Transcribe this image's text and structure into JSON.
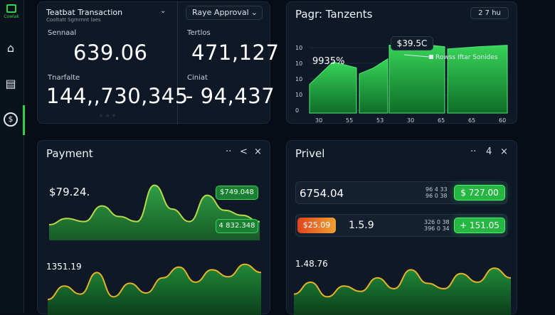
{
  "sidebar": {
    "logo_text": "Cowlak",
    "icons": [
      "home-icon",
      "folder-icon",
      "dollar-icon"
    ]
  },
  "panel1": {
    "title": "Teatbat Transaction",
    "subtitle": "Cooltatt Sgmrnnt laes",
    "dropdown": "Raye Approval",
    "stats": [
      {
        "label": "Sennaal",
        "value": "639.06"
      },
      {
        "label": "Tertlos",
        "value": "471,127"
      },
      {
        "label": "Tnarfalte",
        "value": "144,,730,345"
      },
      {
        "label": "Ciniat",
        "value": "- 94,437"
      }
    ],
    "pager": "◦ ◦ ◦"
  },
  "panel2": {
    "title": "Pagr: Tanzents",
    "badge": "2 7 hu",
    "price_label": "$39.5C",
    "percent_label": "9935%",
    "legend": "Rowss Iftar Sonides",
    "y_ticks": [
      "10",
      "10",
      "10",
      "10",
      "0"
    ],
    "x_ticks": [
      "30",
      "55",
      "53",
      "30",
      "65",
      "65",
      "60"
    ],
    "chart_data": {
      "type": "area",
      "series": [
        {
          "values": [
            38,
            68,
            60,
            52,
            60,
            72,
            90,
            92,
            88,
            85,
            88,
            90
          ]
        }
      ],
      "ylim": [
        0,
        100
      ]
    }
  },
  "panel3": {
    "title": "Payment",
    "controls": [
      "··",
      "<",
      "×"
    ],
    "value_top": "$79.24.",
    "chip_top": "$749.048",
    "chip_bottom": "4 832.348",
    "value_bottom": "1351.19",
    "chart_top": {
      "type": "area",
      "series": [
        {
          "values": [
            25,
            35,
            30,
            55,
            38,
            30,
            88,
            50,
            30,
            72,
            48,
            40,
            30
          ]
        }
      ],
      "ylim": [
        0,
        100
      ]
    },
    "chart_bottom": {
      "type": "area",
      "series": [
        {
          "values": [
            30,
            55,
            40,
            80,
            35,
            60,
            42,
            70,
            90,
            62,
            85,
            72,
            95,
            80
          ]
        }
      ],
      "ylim": [
        0,
        100
      ]
    }
  },
  "panel4": {
    "title": "Privel",
    "controls": [
      "··",
      "4",
      "×"
    ],
    "row1_value": "6754.04",
    "row1_meta": "96 4 33\n96 0 38",
    "row1_chip": "$ 727.00",
    "row2_chip_left": "$25.09",
    "row2_value": "1.5.9",
    "row2_meta": "326 0 38\n396 0 34",
    "row2_chip": "+ 151.05",
    "value_bottom": "1.48.76",
    "chart_bottom": {
      "type": "area",
      "series": [
        {
          "values": [
            40,
            62,
            35,
            55,
            45,
            70,
            50,
            85,
            60,
            50,
            78,
            62,
            88,
            70
          ]
        }
      ],
      "ylim": [
        0,
        100
      ]
    }
  }
}
